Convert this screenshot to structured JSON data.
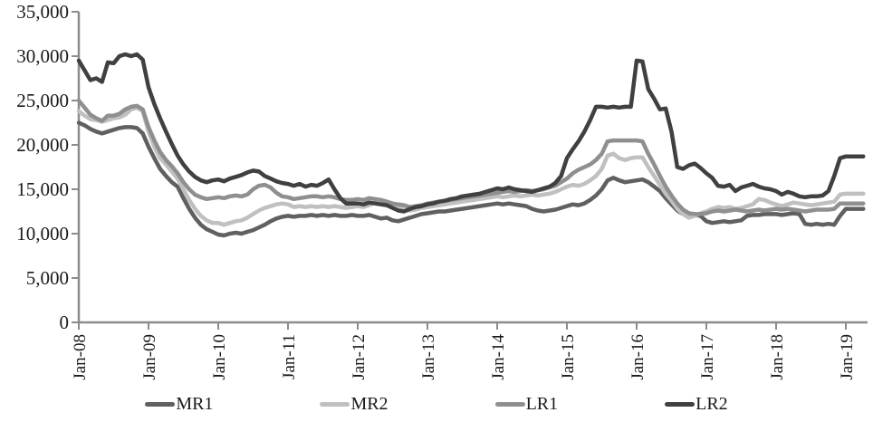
{
  "chart_data": {
    "type": "line",
    "title": "",
    "xlabel": "",
    "ylabel": "",
    "grid": false,
    "legend_position": "bottom",
    "axis_color": "#8c8c8c",
    "text_color": "#1a1a1a",
    "ylim": [
      0,
      35000
    ],
    "y_axis": {
      "tick_values": [
        0,
        5000,
        10000,
        15000,
        20000,
        25000,
        30000,
        35000
      ],
      "tick_labels": [
        "0",
        "5,000",
        "10,000",
        "15,000",
        "20,000",
        "25,000",
        "30,000",
        "35,000"
      ]
    },
    "x_axis": {
      "tick_labels": [
        "Jan-08",
        "Jan-09",
        "Jan-10",
        "Jan-11",
        "Jan-12",
        "Jan-13",
        "Jan-14",
        "Jan-15",
        "Jan-16",
        "Jan-17",
        "Jan-18",
        "Jan-19"
      ],
      "tick_every_months": 12,
      "months_total": 136,
      "start": "Jan-08"
    },
    "series": [
      {
        "name": "MR1",
        "color": "#606060",
        "values": [
          22500,
          22200,
          21800,
          21500,
          21300,
          21500,
          21700,
          21900,
          22000,
          22000,
          21900,
          21300,
          19800,
          18500,
          17300,
          16500,
          15800,
          15300,
          14000,
          12800,
          11800,
          11000,
          10500,
          10200,
          9900,
          9800,
          10000,
          10100,
          10000,
          10200,
          10400,
          10700,
          11000,
          11400,
          11700,
          11900,
          12000,
          11900,
          12000,
          12000,
          12100,
          12000,
          12100,
          12000,
          12100,
          12000,
          12000,
          12100,
          12000,
          12000,
          12100,
          11900,
          11700,
          11800,
          11500,
          11400,
          11600,
          11800,
          12000,
          12200,
          12300,
          12400,
          12500,
          12500,
          12600,
          12700,
          12800,
          12900,
          13000,
          13100,
          13200,
          13300,
          13400,
          13300,
          13400,
          13300,
          13200,
          13100,
          12800,
          12600,
          12500,
          12600,
          12700,
          12900,
          13100,
          13300,
          13200,
          13400,
          13800,
          14300,
          15000,
          16000,
          16300,
          16000,
          15800,
          15900,
          16000,
          16100,
          15800,
          15300,
          14800,
          14000,
          13300,
          12600,
          12200,
          12000,
          12100,
          12000,
          11400,
          11200,
          11300,
          11400,
          11300,
          11400,
          11500,
          12000,
          12100,
          12100,
          12200,
          12200,
          12200,
          12100,
          12200,
          12300,
          12200,
          11100,
          11000,
          11100,
          11000,
          11100,
          11000,
          12000,
          12800,
          12800,
          12800,
          12800
        ]
      },
      {
        "name": "MR2",
        "color": "#c0c0c0",
        "values": [
          23800,
          23300,
          22900,
          22800,
          22600,
          22800,
          23000,
          23100,
          23400,
          24000,
          24200,
          23800,
          21500,
          19800,
          18500,
          17800,
          17000,
          16200,
          15000,
          13800,
          12800,
          12000,
          11500,
          11200,
          11200,
          11000,
          11200,
          11400,
          11500,
          11800,
          12200,
          12600,
          12900,
          13100,
          13300,
          13400,
          13300,
          13000,
          13100,
          13000,
          13100,
          13000,
          13100,
          13000,
          13100,
          13000,
          12900,
          13000,
          13100,
          13000,
          13200,
          13500,
          13800,
          13400,
          13100,
          12900,
          12700,
          12600,
          12700,
          12900,
          13000,
          13100,
          13200,
          13300,
          13400,
          13500,
          13600,
          13700,
          13800,
          13900,
          14000,
          14100,
          14200,
          14100,
          14200,
          14300,
          14200,
          14300,
          14400,
          14300,
          14400,
          14500,
          14700,
          15000,
          15300,
          15500,
          15400,
          15600,
          16000,
          16500,
          17300,
          18800,
          19000,
          18500,
          18300,
          18500,
          18600,
          18600,
          17500,
          16500,
          15500,
          14500,
          13700,
          12800,
          12200,
          11800,
          12000,
          12300,
          12500,
          12800,
          13000,
          12900,
          13000,
          12800,
          12900,
          13100,
          13300,
          13900,
          13800,
          13500,
          13300,
          13100,
          13300,
          13500,
          13400,
          13300,
          13200,
          13300,
          13400,
          13500,
          13600,
          14400,
          14500,
          14500,
          14500,
          14500
        ]
      },
      {
        "name": "LR1",
        "color": "#8f8f8f",
        "values": [
          25000,
          24200,
          23400,
          23000,
          22700,
          23300,
          23300,
          23500,
          24000,
          24300,
          24400,
          24000,
          22000,
          20500,
          19200,
          18300,
          17600,
          16800,
          15800,
          15000,
          14400,
          14100,
          13900,
          14000,
          14100,
          14000,
          14200,
          14300,
          14200,
          14400,
          15000,
          15400,
          15500,
          15200,
          14600,
          14200,
          14100,
          13900,
          14000,
          14100,
          14200,
          14200,
          14100,
          14200,
          14100,
          13900,
          13800,
          13800,
          13900,
          13800,
          14000,
          13900,
          13800,
          13600,
          13400,
          13300,
          13200,
          13000,
          13100,
          13200,
          13400,
          13500,
          13600,
          13700,
          13800,
          13900,
          14000,
          14100,
          14200,
          14300,
          14400,
          14500,
          14600,
          14700,
          14800,
          14700,
          14800,
          14900,
          14800,
          14900,
          15000,
          15200,
          15400,
          15800,
          16200,
          16800,
          17200,
          17500,
          17800,
          18300,
          19000,
          20400,
          20500,
          20500,
          20500,
          20500,
          20500,
          20400,
          19000,
          17800,
          16500,
          15300,
          14300,
          13400,
          12700,
          12300,
          12200,
          12200,
          12300,
          12500,
          12600,
          12500,
          12600,
          12700,
          12600,
          12500,
          12600,
          12700,
          12600,
          12700,
          12800,
          12700,
          12800,
          12700,
          12600,
          12500,
          12600,
          12700,
          12700,
          12700,
          12800,
          13400,
          13400,
          13400,
          13400,
          13400
        ]
      },
      {
        "name": "LR2",
        "color": "#404040",
        "values": [
          29500,
          28400,
          27300,
          27500,
          27100,
          29300,
          29200,
          30000,
          30200,
          30000,
          30200,
          29600,
          26500,
          24600,
          23000,
          21500,
          20100,
          18800,
          17800,
          17000,
          16400,
          16000,
          15800,
          16000,
          16100,
          15900,
          16200,
          16400,
          16600,
          16900,
          17100,
          17000,
          16500,
          16200,
          15900,
          15700,
          15600,
          15400,
          15600,
          15300,
          15500,
          15400,
          15700,
          16100,
          15000,
          14000,
          13400,
          13400,
          13400,
          13300,
          13500,
          13400,
          13300,
          13200,
          12900,
          12600,
          12500,
          12800,
          13000,
          13100,
          13300,
          13400,
          13600,
          13700,
          13900,
          14000,
          14200,
          14300,
          14400,
          14500,
          14700,
          14900,
          15100,
          15000,
          15200,
          15000,
          14900,
          14800,
          14700,
          14900,
          15100,
          15300,
          15700,
          16500,
          18500,
          19500,
          20400,
          21500,
          22800,
          24300,
          24300,
          24200,
          24300,
          24200,
          24300,
          24300,
          29500,
          29400,
          26300,
          25200,
          24000,
          24100,
          21500,
          17500,
          17300,
          17700,
          17900,
          17400,
          16800,
          16300,
          15400,
          15300,
          15500,
          14800,
          15200,
          15400,
          15600,
          15300,
          15100,
          15000,
          14800,
          14400,
          14700,
          14500,
          14200,
          14100,
          14200,
          14200,
          14300,
          14800,
          16500,
          18500,
          18700,
          18700,
          18700,
          18700
        ]
      }
    ]
  }
}
